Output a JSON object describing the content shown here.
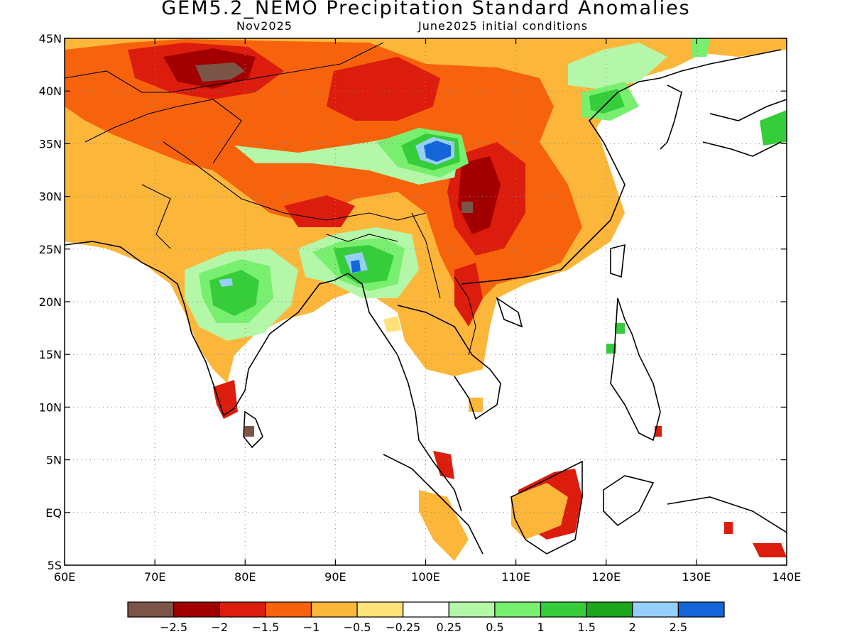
{
  "title": "GEM5.2_NEMO Precipitation Standard Anomalies",
  "subtitle_left": "Nov2025",
  "subtitle_right": "June2025 initial conditions",
  "axes": {
    "lon_range": [
      60,
      140
    ],
    "lat_range": [
      -5,
      45
    ],
    "lon_ticks": [
      "60E",
      "70E",
      "80E",
      "90E",
      "100E",
      "110E",
      "120E",
      "130E",
      "140E"
    ],
    "lat_ticks": [
      "45N",
      "40N",
      "35N",
      "30N",
      "25N",
      "20N",
      "15N",
      "10N",
      "5N",
      "EQ",
      "5S"
    ],
    "grid": "dotted"
  },
  "colorbar": {
    "colors": [
      "#7a5548",
      "#a20000",
      "#dc1c0c",
      "#f7630c",
      "#fcb63a",
      "#ffe27a",
      "#ffffff",
      "#b4f7a8",
      "#78ef6e",
      "#36cd3a",
      "#1ca61c",
      "#96d0fa",
      "#1466d8"
    ],
    "labels": [
      "−2.5",
      "−2",
      "−1.5",
      "−1",
      "−0.5",
      "−0.25",
      "0.25",
      "0.5",
      "1",
      "1.5",
      "2",
      "2.5"
    ]
  }
}
